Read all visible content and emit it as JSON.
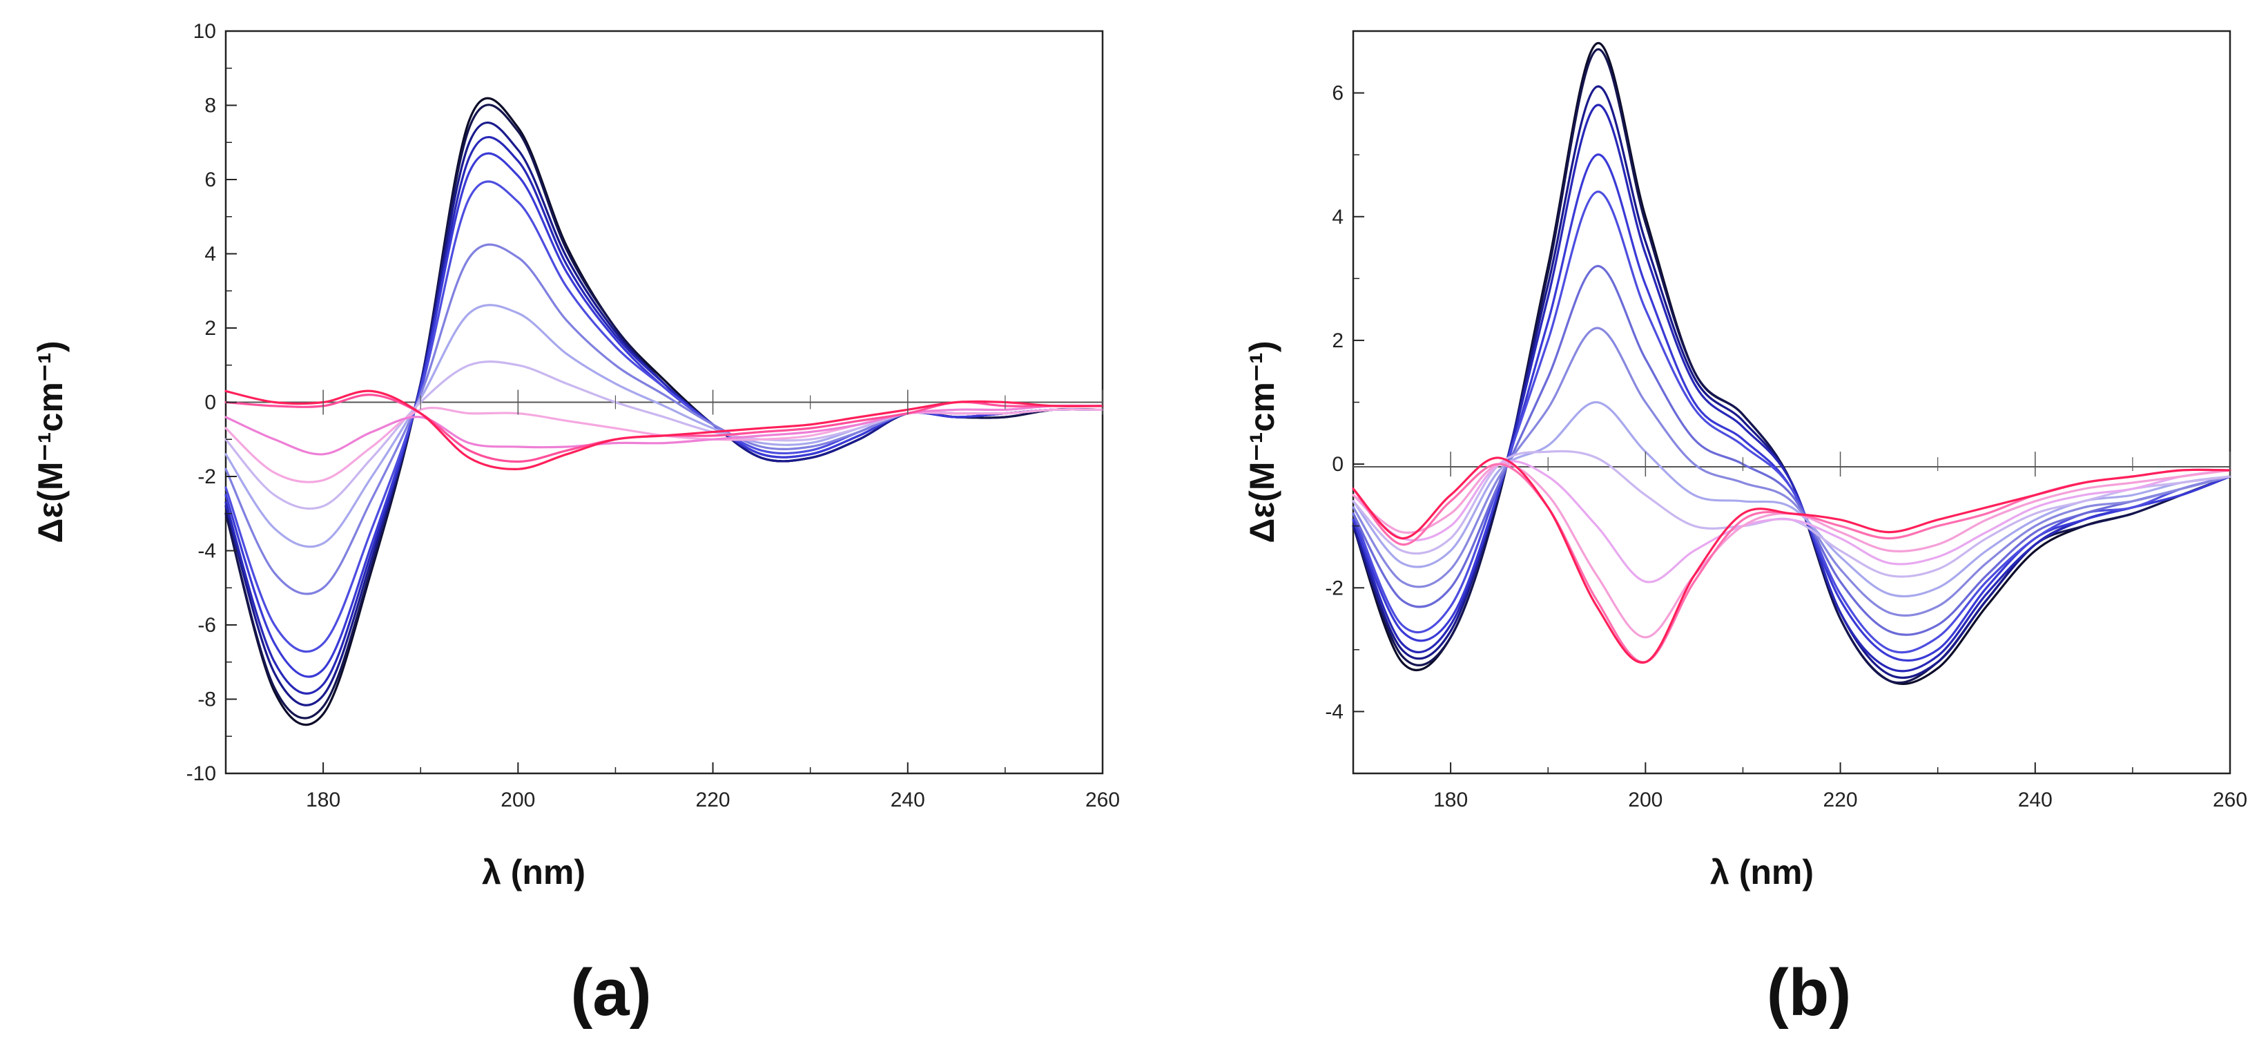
{
  "chart_data": [
    {
      "type": "line",
      "panel_label": "(a)",
      "title": "",
      "xlabel": "λ (nm)",
      "ylabel": "Δε(M⁻¹cm⁻¹)",
      "xlim": [
        170,
        260
      ],
      "ylim": [
        -10,
        10
      ],
      "x_ticks": [
        180,
        200,
        220,
        240,
        260
      ],
      "y_ticks": [
        -10,
        -8,
        -6,
        -4,
        -2,
        0,
        2,
        4,
        6,
        8,
        10
      ],
      "x_tick_labels": [
        "180",
        "200",
        "220",
        "240",
        "260"
      ],
      "y_tick_labels": [
        "-10",
        "-8",
        "-6",
        "-4",
        "-2",
        "0",
        "2",
        "4",
        "6",
        "8",
        "10"
      ],
      "x": [
        170,
        175,
        180,
        185,
        190,
        195,
        200,
        205,
        210,
        215,
        220,
        225,
        230,
        235,
        240,
        245,
        250,
        255,
        260
      ],
      "series": [
        {
          "name": "s1",
          "color": "#0d0d2a",
          "values": [
            -3.0,
            -7.8,
            -8.4,
            -4.5,
            0.5,
            7.6,
            7.4,
            4.2,
            2.0,
            0.6,
            -0.6,
            -1.5,
            -1.5,
            -1.0,
            -0.3,
            -0.4,
            -0.4,
            -0.2,
            -0.2
          ]
        },
        {
          "name": "s2",
          "color": "#151550",
          "values": [
            -3.0,
            -7.7,
            -8.2,
            -4.4,
            0.5,
            7.4,
            7.3,
            4.1,
            2.0,
            0.5,
            -0.6,
            -1.5,
            -1.5,
            -1.0,
            -0.3,
            -0.4,
            -0.4,
            -0.2,
            -0.2
          ]
        },
        {
          "name": "s3",
          "color": "#1a1a8c",
          "values": [
            -2.8,
            -7.3,
            -7.9,
            -4.2,
            0.5,
            7.0,
            6.8,
            3.9,
            1.9,
            0.5,
            -0.6,
            -1.5,
            -1.5,
            -1.0,
            -0.3,
            -0.4,
            -0.3,
            -0.2,
            -0.2
          ]
        },
        {
          "name": "s4",
          "color": "#2828b8",
          "values": [
            -2.7,
            -7.0,
            -7.6,
            -4.0,
            0.4,
            6.6,
            6.5,
            3.7,
            1.8,
            0.5,
            -0.6,
            -1.4,
            -1.4,
            -0.9,
            -0.3,
            -0.4,
            -0.3,
            -0.2,
            -0.2
          ]
        },
        {
          "name": "s5",
          "color": "#3a3ad6",
          "values": [
            -2.5,
            -6.5,
            -7.2,
            -3.8,
            0.4,
            6.2,
            6.1,
            3.5,
            1.7,
            0.4,
            -0.6,
            -1.4,
            -1.4,
            -0.9,
            -0.3,
            -0.4,
            -0.3,
            -0.2,
            -0.2
          ]
        },
        {
          "name": "s6",
          "color": "#4d4de0",
          "values": [
            -2.3,
            -6.0,
            -6.5,
            -3.4,
            0.3,
            5.5,
            5.4,
            3.1,
            1.5,
            0.4,
            -0.6,
            -1.3,
            -1.3,
            -0.8,
            -0.3,
            -0.3,
            -0.3,
            -0.2,
            -0.2
          ]
        },
        {
          "name": "s7",
          "color": "#8080e0",
          "values": [
            -1.8,
            -4.6,
            -5.0,
            -2.6,
            0.2,
            3.9,
            3.9,
            2.2,
            1.0,
            0.2,
            -0.6,
            -1.2,
            -1.2,
            -0.8,
            -0.3,
            -0.3,
            -0.3,
            -0.2,
            -0.2
          ]
        },
        {
          "name": "s8",
          "color": "#a8a8ee",
          "values": [
            -1.4,
            -3.4,
            -3.8,
            -2.0,
            0.1,
            2.4,
            2.4,
            1.3,
            0.5,
            -0.1,
            -0.7,
            -1.1,
            -1.1,
            -0.7,
            -0.3,
            -0.3,
            -0.3,
            -0.2,
            -0.2
          ]
        },
        {
          "name": "s9",
          "color": "#c9b7f0",
          "values": [
            -1.0,
            -2.5,
            -2.8,
            -1.5,
            0.0,
            1.0,
            1.0,
            0.5,
            0.0,
            -0.4,
            -0.8,
            -1.0,
            -1.0,
            -0.7,
            -0.3,
            -0.3,
            -0.3,
            -0.2,
            -0.2
          ]
        },
        {
          "name": "s10",
          "color": "#f5a8e0",
          "values": [
            -0.7,
            -1.9,
            -2.1,
            -1.2,
            -0.2,
            -0.3,
            -0.3,
            -0.5,
            -0.7,
            -0.9,
            -1.0,
            -1.0,
            -0.9,
            -0.6,
            -0.3,
            -0.3,
            -0.3,
            -0.2,
            -0.2
          ]
        },
        {
          "name": "s11",
          "color": "#ee7fd6",
          "values": [
            -0.4,
            -1.0,
            -1.4,
            -0.8,
            -0.4,
            -1.1,
            -1.2,
            -1.2,
            -1.1,
            -1.1,
            -1.0,
            -0.9,
            -0.8,
            -0.6,
            -0.3,
            -0.2,
            -0.2,
            -0.1,
            -0.1
          ]
        },
        {
          "name": "s12",
          "color": "#ff4f9a",
          "values": [
            0.0,
            -0.1,
            -0.1,
            0.2,
            -0.3,
            -1.3,
            -1.6,
            -1.3,
            -1.0,
            -0.9,
            -0.9,
            -0.8,
            -0.7,
            -0.5,
            -0.3,
            0.0,
            -0.1,
            -0.1,
            -0.1
          ]
        },
        {
          "name": "s13",
          "color": "#ff1f5a",
          "values": [
            0.3,
            0.0,
            0.0,
            0.3,
            -0.3,
            -1.5,
            -1.8,
            -1.4,
            -1.0,
            -0.9,
            -0.8,
            -0.7,
            -0.6,
            -0.4,
            -0.2,
            0.0,
            0.0,
            -0.1,
            -0.1
          ]
        }
      ]
    },
    {
      "type": "line",
      "panel_label": "(b)",
      "title": "",
      "xlabel": "λ (nm)",
      "ylabel": "Δε(M⁻¹cm⁻¹)",
      "xlim": [
        170,
        260
      ],
      "ylim": [
        -5,
        7
      ],
      "x_ticks": [
        180,
        200,
        220,
        240,
        260
      ],
      "y_ticks": [
        -4,
        -2,
        0,
        2,
        4,
        6
      ],
      "x_tick_labels": [
        "180",
        "200",
        "220",
        "240",
        "260"
      ],
      "y_tick_labels": [
        "-4",
        "-2",
        "0",
        "2",
        "4",
        "6"
      ],
      "x": [
        170,
        175,
        180,
        185,
        190,
        195,
        200,
        205,
        210,
        215,
        220,
        225,
        230,
        235,
        240,
        245,
        250,
        255,
        260
      ],
      "series": [
        {
          "name": "s1",
          "color": "#0d0d2a",
          "values": [
            -1.0,
            -3.2,
            -2.8,
            -0.5,
            3.2,
            6.8,
            4.0,
            1.5,
            0.8,
            -0.3,
            -2.5,
            -3.5,
            -3.3,
            -2.3,
            -1.4,
            -1.0,
            -0.8,
            -0.5,
            -0.2
          ]
        },
        {
          "name": "s2",
          "color": "#151550",
          "values": [
            -1.0,
            -3.1,
            -2.8,
            -0.5,
            3.1,
            6.7,
            3.9,
            1.5,
            0.8,
            -0.3,
            -2.5,
            -3.5,
            -3.2,
            -2.2,
            -1.3,
            -1.0,
            -0.8,
            -0.5,
            -0.2
          ]
        },
        {
          "name": "s3",
          "color": "#1a1a8c",
          "values": [
            -1.0,
            -3.0,
            -2.7,
            -0.4,
            2.9,
            6.1,
            3.6,
            1.4,
            0.7,
            -0.3,
            -2.4,
            -3.4,
            -3.2,
            -2.2,
            -1.3,
            -0.9,
            -0.7,
            -0.5,
            -0.2
          ]
        },
        {
          "name": "s4",
          "color": "#2828b8",
          "values": [
            -0.9,
            -2.9,
            -2.6,
            -0.4,
            2.7,
            5.8,
            3.4,
            1.3,
            0.6,
            -0.3,
            -2.4,
            -3.3,
            -3.1,
            -2.1,
            -1.3,
            -0.9,
            -0.7,
            -0.5,
            -0.2
          ]
        },
        {
          "name": "s5",
          "color": "#3a3ad6",
          "values": [
            -0.9,
            -2.7,
            -2.5,
            -0.4,
            2.3,
            5.0,
            2.9,
            1.0,
            0.4,
            -0.4,
            -2.2,
            -3.1,
            -3.0,
            -2.0,
            -1.2,
            -0.9,
            -0.7,
            -0.5,
            -0.2
          ]
        },
        {
          "name": "s6",
          "color": "#4d4de0",
          "values": [
            -0.8,
            -2.6,
            -2.3,
            -0.3,
            2.0,
            4.4,
            2.5,
            0.9,
            0.3,
            -0.4,
            -2.1,
            -3.0,
            -2.8,
            -1.9,
            -1.2,
            -0.8,
            -0.7,
            -0.4,
            -0.2
          ]
        },
        {
          "name": "s7",
          "color": "#6b6bd8",
          "values": [
            -0.8,
            -2.2,
            -2.0,
            -0.3,
            1.4,
            3.2,
            1.7,
            0.4,
            0.0,
            -0.5,
            -1.9,
            -2.7,
            -2.6,
            -1.8,
            -1.1,
            -0.8,
            -0.6,
            -0.4,
            -0.2
          ]
        },
        {
          "name": "s8",
          "color": "#8888e0",
          "values": [
            -0.7,
            -1.9,
            -1.7,
            -0.2,
            0.9,
            2.2,
            1.0,
            0.0,
            -0.3,
            -0.6,
            -1.7,
            -2.4,
            -2.3,
            -1.6,
            -1.0,
            -0.7,
            -0.6,
            -0.4,
            -0.2
          ]
        },
        {
          "name": "s9",
          "color": "#a8a8ee",
          "values": [
            -0.6,
            -1.6,
            -1.4,
            -0.1,
            0.3,
            1.0,
            0.2,
            -0.5,
            -0.6,
            -0.7,
            -1.5,
            -2.1,
            -2.0,
            -1.4,
            -0.9,
            -0.6,
            -0.5,
            -0.3,
            -0.2
          ]
        },
        {
          "name": "s10",
          "color": "#c9b7f0",
          "values": [
            -0.6,
            -1.4,
            -1.2,
            0.0,
            0.2,
            0.1,
            -0.5,
            -1.0,
            -1.0,
            -0.9,
            -1.4,
            -1.8,
            -1.7,
            -1.2,
            -0.8,
            -0.6,
            -0.4,
            -0.3,
            -0.2
          ]
        },
        {
          "name": "s11",
          "color": "#e8a8f0",
          "values": [
            -0.5,
            -1.2,
            -1.0,
            0.0,
            -0.2,
            -1.0,
            -1.9,
            -1.4,
            -1.0,
            -0.9,
            -1.2,
            -1.6,
            -1.5,
            -1.1,
            -0.7,
            -0.5,
            -0.4,
            -0.2,
            -0.1
          ]
        },
        {
          "name": "s12",
          "color": "#f5a0d8",
          "values": [
            -0.5,
            -1.1,
            -0.8,
            0.0,
            -0.5,
            -1.8,
            -2.8,
            -1.8,
            -1.0,
            -0.8,
            -1.1,
            -1.4,
            -1.3,
            -0.9,
            -0.6,
            -0.4,
            -0.3,
            -0.2,
            -0.1
          ]
        },
        {
          "name": "s13",
          "color": "#ff6fb0",
          "values": [
            -0.4,
            -1.3,
            -0.6,
            0.0,
            -0.7,
            -2.2,
            -3.2,
            -1.9,
            -0.9,
            -0.8,
            -1.0,
            -1.2,
            -1.0,
            -0.8,
            -0.5,
            -0.3,
            -0.2,
            -0.1,
            -0.1
          ]
        },
        {
          "name": "s14",
          "color": "#ff1f5a",
          "values": [
            -0.4,
            -1.2,
            -0.5,
            0.1,
            -0.7,
            -2.3,
            -3.2,
            -1.8,
            -0.8,
            -0.8,
            -0.9,
            -1.1,
            -0.9,
            -0.7,
            -0.5,
            -0.3,
            -0.2,
            -0.1,
            -0.1
          ]
        }
      ]
    }
  ]
}
